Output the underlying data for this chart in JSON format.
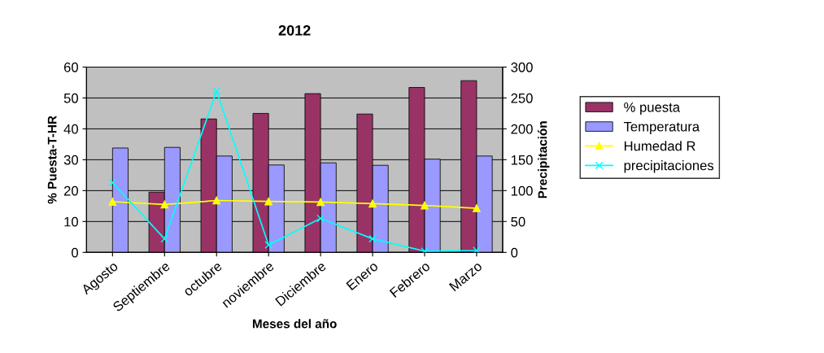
{
  "chart_data": {
    "type": "bar",
    "title": "2012",
    "xlabel": "Meses del año",
    "ylabel": "% Puesta-T-HR",
    "y2label": "Precipitación",
    "categories": [
      "Agosto",
      "Septiembre",
      "octubre",
      "noviembre",
      "Diciembre",
      "Enero",
      "Febrero",
      "Marzo"
    ],
    "series": [
      {
        "name": "% puesta",
        "color": "#993366",
        "values": [
          null,
          19.5,
          43.2,
          45,
          51.4,
          44.8,
          53.4,
          55.6
        ]
      },
      {
        "name": "Temperatura",
        "color": "#9999ff",
        "values": [
          33.8,
          34,
          31.2,
          28.3,
          29,
          28.2,
          30.2,
          31.2
        ]
      },
      {
        "name": "Humedad R",
        "type": "line",
        "color": "#ffff00",
        "marker": "triangle",
        "values": [
          16.4,
          15.5,
          16.8,
          16.5,
          16.3,
          15.8,
          15.2,
          14.3
        ]
      },
      {
        "name": "precipitaciones",
        "type": "line",
        "axis": "y2",
        "color": "#00ffff",
        "marker": "cross",
        "values": [
          113,
          22,
          261,
          12,
          55,
          22,
          2,
          3
        ]
      }
    ],
    "ylim": [
      0,
      60
    ],
    "yticks": [
      0,
      10,
      20,
      30,
      40,
      50,
      60
    ],
    "y2lim": [
      0,
      300
    ],
    "y2ticks": [
      0,
      50,
      100,
      150,
      200,
      250,
      300
    ],
    "grid": "y",
    "legend": "right"
  }
}
